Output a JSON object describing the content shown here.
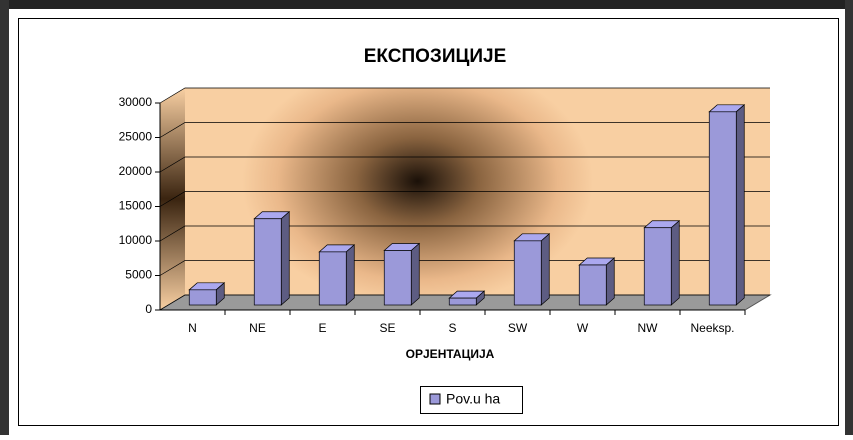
{
  "chart_data": {
    "type": "bar3d",
    "title": "ЕКСПОЗИЦИЈЕ",
    "x_label": "ОРЈЕНТАЦИЈА",
    "categories": [
      "N",
      "NE",
      "E",
      "SE",
      "S",
      "SW",
      "W",
      "NW",
      "Neeksp."
    ],
    "series": [
      {
        "name": "Pov.u ha",
        "color": "#9b99d9",
        "values": [
          2200,
          12500,
          7700,
          7900,
          1000,
          9300,
          5800,
          11200,
          28000
        ]
      }
    ],
    "ylim": [
      0,
      30000
    ],
    "yticks": [
      0,
      5000,
      10000,
      15000,
      20000,
      25000,
      30000
    ],
    "grid": true,
    "legend": "bottom"
  }
}
